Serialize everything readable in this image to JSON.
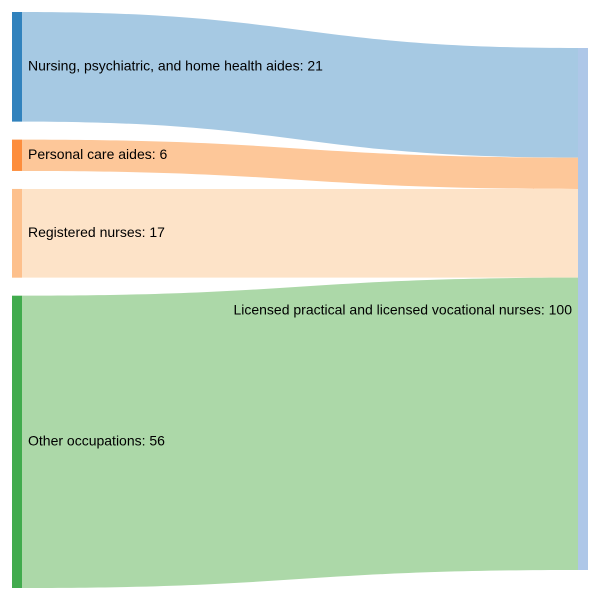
{
  "chart_data": {
    "type": "sankey",
    "sources": [
      {
        "name": "Nursing, psychiatric, and home health aides",
        "value": 21,
        "label": "Nursing, psychiatric, and home health aides: 21",
        "color": "#3182bd",
        "link_color": "#a6c9e3"
      },
      {
        "name": "Personal care aides",
        "value": 6,
        "label": "Personal care aides: 6",
        "color": "#fd8d3c",
        "link_color": "#fdc799"
      },
      {
        "name": "Registered nurses",
        "value": 17,
        "label": "Registered nurses: 17",
        "color": "#fdc08c",
        "link_color": "#fde3c8"
      },
      {
        "name": "Other occupations",
        "value": 56,
        "label": "Other occupations: 56",
        "color": "#41ab4d",
        "link_color": "#acd8a8"
      }
    ],
    "target": {
      "name": "Licensed practical and licensed vocational nurses",
      "value": 100,
      "label": "Licensed practical and licensed vocational nurses: 100",
      "color": "#aec7e8"
    }
  }
}
